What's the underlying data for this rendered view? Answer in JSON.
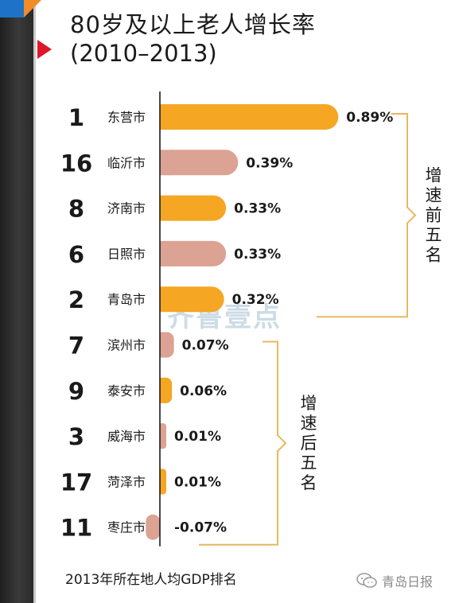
{
  "title": "80岁及以上老人增长率",
  "subtitle": "(2010–2013)",
  "footer_note": "2013年所在地人均GDP排名",
  "brand": {
    "label": "青岛日报",
    "icon": "wechat-icon"
  },
  "watermark": "齐鲁壹点",
  "colors": {
    "highlight": "#f5a623",
    "normal": "#dca294",
    "bracket": "#e8b860"
  },
  "chart_data": {
    "type": "bar",
    "orientation": "horizontal",
    "title": "80岁及以上老人增长率",
    "subtitle": "(2010–2013)",
    "xlabel": "",
    "ylabel": "",
    "unit": "%",
    "xlim": [
      -0.07,
      0.89
    ],
    "rows": [
      {
        "rank": "1",
        "city": "东营市",
        "value": 0.89,
        "label": "0.89%",
        "highlight": true
      },
      {
        "rank": "16",
        "city": "临沂市",
        "value": 0.39,
        "label": "0.39%",
        "highlight": false
      },
      {
        "rank": "8",
        "city": "济南市",
        "value": 0.33,
        "label": "0.33%",
        "highlight": true
      },
      {
        "rank": "6",
        "city": "日照市",
        "value": 0.33,
        "label": "0.33%",
        "highlight": false
      },
      {
        "rank": "2",
        "city": "青岛市",
        "value": 0.32,
        "label": "0.32%",
        "highlight": true
      },
      {
        "rank": "7",
        "city": "滨州市",
        "value": 0.07,
        "label": "0.07%",
        "highlight": false
      },
      {
        "rank": "9",
        "city": "泰安市",
        "value": 0.06,
        "label": "0.06%",
        "highlight": true
      },
      {
        "rank": "3",
        "city": "威海市",
        "value": 0.01,
        "label": "0.01%",
        "highlight": false
      },
      {
        "rank": "17",
        "city": "菏泽市",
        "value": 0.01,
        "label": "0.01%",
        "highlight": true
      },
      {
        "rank": "11",
        "city": "枣庄市",
        "value": -0.07,
        "label": "-0.07%",
        "highlight": false
      }
    ],
    "groups": [
      {
        "label": "增速前五名",
        "from": 0,
        "to": 4
      },
      {
        "label": "增速后五名",
        "from": 5,
        "to": 9
      }
    ]
  }
}
